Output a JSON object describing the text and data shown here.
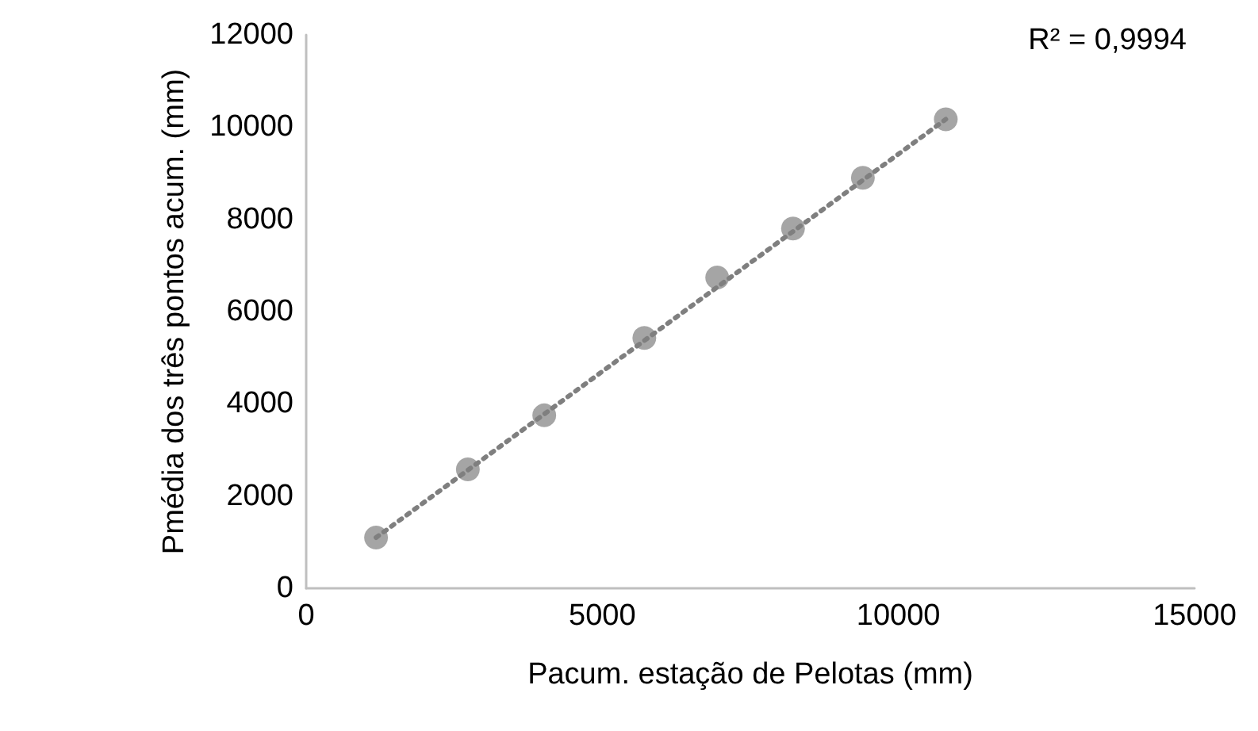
{
  "chart_data": {
    "type": "scatter",
    "xlabel": "Pacum. estação de Pelotas (mm)",
    "ylabel": "Pmédia dos três pontos acum. (mm)",
    "xlim": [
      0,
      15000
    ],
    "xticks": [
      0,
      5000,
      10000,
      15000
    ],
    "ylim": [
      0,
      12000
    ],
    "yticks": [
      0,
      2000,
      4000,
      6000,
      8000,
      10000,
      12000
    ],
    "grid": false,
    "marker": "circle",
    "annotations": [
      "R² = 0,9994"
    ],
    "series": [
      {
        "color": "#a5a5a5",
        "x": [
          1180,
          2730,
          4020,
          5710,
          6940,
          8220,
          9400,
          10800
        ],
        "values": [
          1100,
          2580,
          3750,
          5430,
          6740,
          7800,
          8900,
          10170
        ]
      },
      {
        "type": "line",
        "color": "#7f7f7f",
        "line_style": "dotted",
        "marker": "none",
        "x": [
          1180,
          10800
        ],
        "values": [
          1100,
          10170
        ]
      }
    ]
  }
}
